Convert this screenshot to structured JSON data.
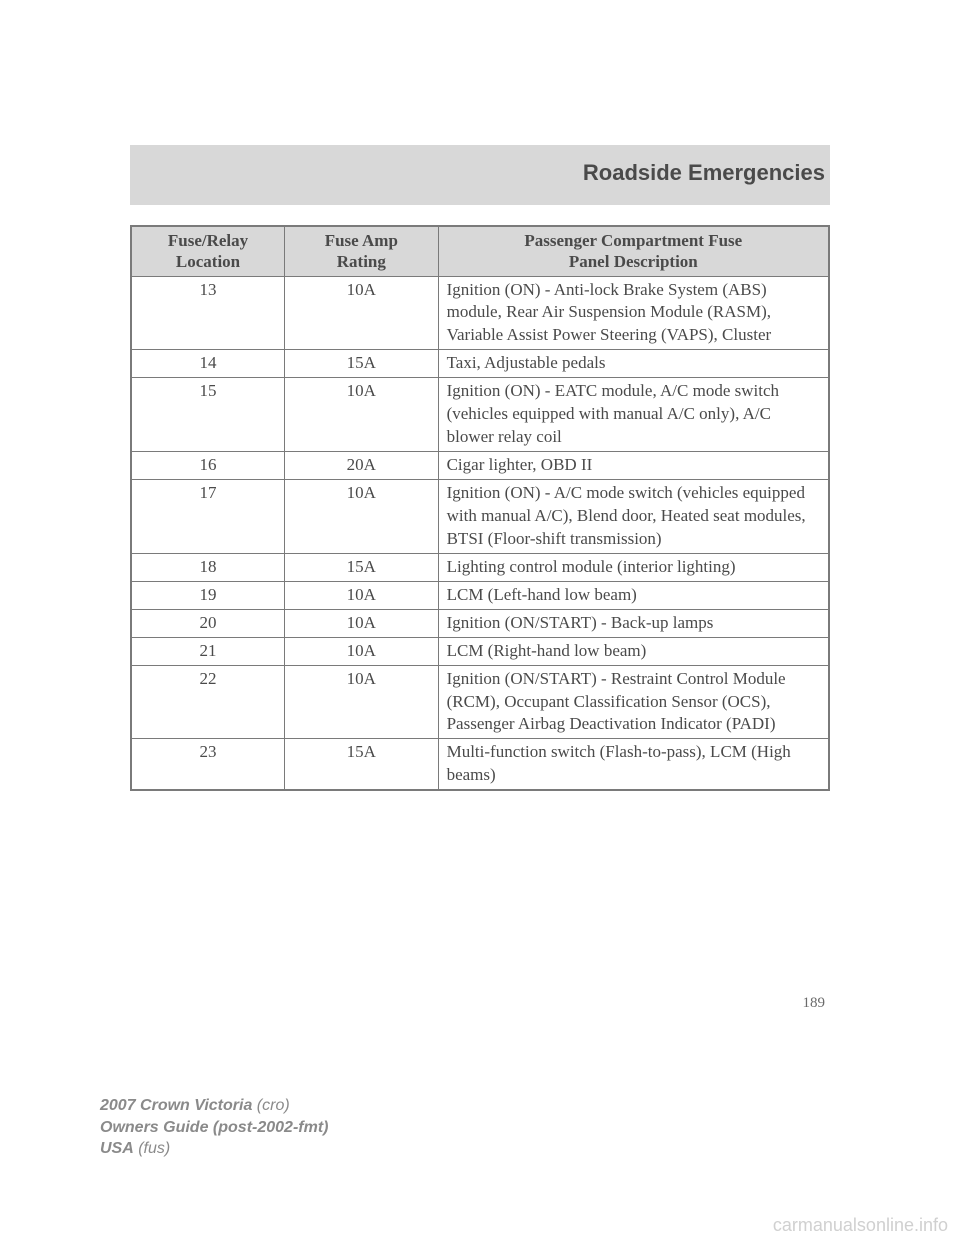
{
  "section_title": "Roadside Emergencies",
  "page_number": "189",
  "footer": {
    "line1_bold": "2007 Crown Victoria",
    "line1_ital": " (cro)",
    "line2": "Owners Guide (post-2002-fmt)",
    "line3_bold": "USA",
    "line3_ital": " (fus)"
  },
  "watermark": "carmanualsonline.info",
  "table": {
    "type": "table",
    "header": {
      "col1_l1": "Fuse/Relay",
      "col1_l2": "Location",
      "col2_l1": "Fuse Amp",
      "col2_l2": "Rating",
      "col3_l1": "Passenger Compartment Fuse",
      "col3_l2": "Panel Description"
    },
    "col_widths_pct": [
      22,
      22,
      56
    ],
    "header_bg": "#d8d8d8",
    "border_color": "#7a7a7a",
    "text_color": "#4a4a4a",
    "font_size_pt": 12,
    "rows": [
      {
        "loc": "13",
        "amp": "10A",
        "desc": "Ignition (ON) - Anti-lock Brake System (ABS) module, Rear Air Suspension Module (RASM), Variable Assist Power Steering (VAPS), Cluster"
      },
      {
        "loc": "14",
        "amp": "15A",
        "desc": "Taxi, Adjustable pedals"
      },
      {
        "loc": "15",
        "amp": "10A",
        "desc": "Ignition (ON) - EATC module, A/C mode switch (vehicles equipped with manual A/C only), A/C blower relay coil"
      },
      {
        "loc": "16",
        "amp": "20A",
        "desc": "Cigar lighter, OBD II"
      },
      {
        "loc": "17",
        "amp": "10A",
        "desc": "Ignition (ON) - A/C mode switch (vehicles equipped with manual A/C), Blend door, Heated seat modules, BTSI (Floor-shift transmission)"
      },
      {
        "loc": "18",
        "amp": "15A",
        "desc": "Lighting control module (interior lighting)"
      },
      {
        "loc": "19",
        "amp": "10A",
        "desc": "LCM (Left-hand low beam)"
      },
      {
        "loc": "20",
        "amp": "10A",
        "desc": "Ignition (ON/START) - Back-up lamps"
      },
      {
        "loc": "21",
        "amp": "10A",
        "desc": "LCM (Right-hand low beam)"
      },
      {
        "loc": "22",
        "amp": "10A",
        "desc": "Ignition (ON/START) - Restraint Control Module (RCM), Occupant Classification Sensor (OCS), Passenger Airbag Deactivation Indicator (PADI)"
      },
      {
        "loc": "23",
        "amp": "15A",
        "desc": "Multi-function switch (Flash-to-pass), LCM (High beams)"
      }
    ]
  }
}
